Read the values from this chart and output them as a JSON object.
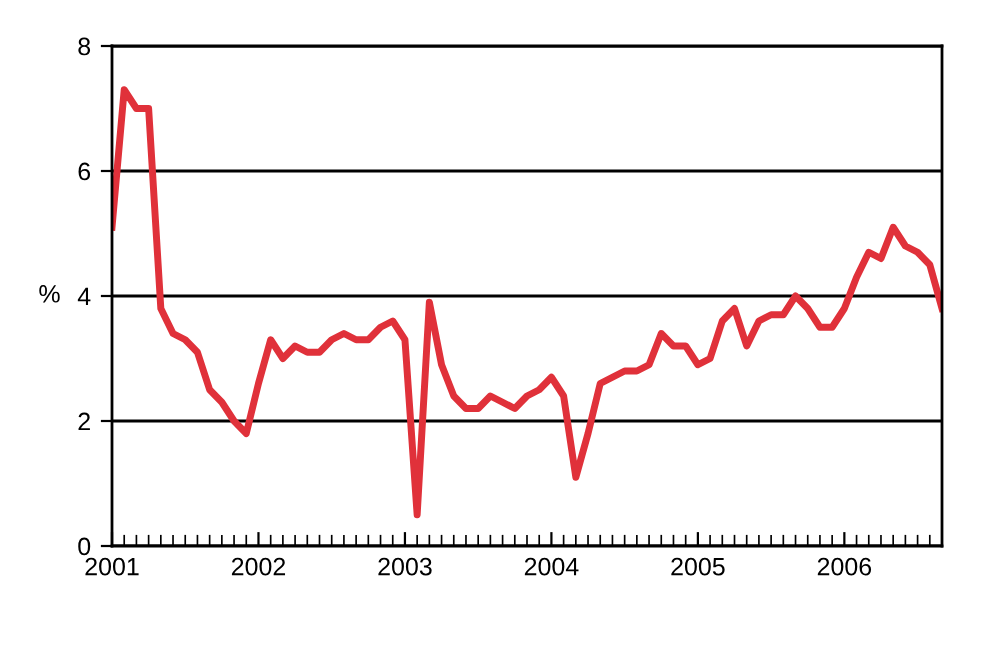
{
  "chart_data": {
    "type": "line",
    "ylabel": "%",
    "x": [
      "2001-01",
      "2001-02",
      "2001-03",
      "2001-04",
      "2001-05",
      "2001-06",
      "2001-07",
      "2001-08",
      "2001-09",
      "2001-10",
      "2001-11",
      "2001-12",
      "2002-01",
      "2002-02",
      "2002-03",
      "2002-04",
      "2002-05",
      "2002-06",
      "2002-07",
      "2002-08",
      "2002-09",
      "2002-10",
      "2002-11",
      "2002-12",
      "2003-01",
      "2003-02",
      "2003-03",
      "2003-04",
      "2003-05",
      "2003-06",
      "2003-07",
      "2003-08",
      "2003-09",
      "2003-10",
      "2003-11",
      "2003-12",
      "2004-01",
      "2004-02",
      "2004-03",
      "2004-04",
      "2004-05",
      "2004-06",
      "2004-07",
      "2004-08",
      "2004-09",
      "2004-10",
      "2004-11",
      "2004-12",
      "2005-01",
      "2005-02",
      "2005-03",
      "2005-04",
      "2005-05",
      "2005-06",
      "2005-07",
      "2005-08",
      "2005-09",
      "2005-10",
      "2005-11",
      "2005-12",
      "2006-01",
      "2006-02",
      "2006-03",
      "2006-04",
      "2006-05",
      "2006-06",
      "2006-07",
      "2006-08",
      "2006-09"
    ],
    "series": [
      {
        "color": "#e0313a",
        "values": [
          5.1,
          7.3,
          7.0,
          7.0,
          3.8,
          3.4,
          3.3,
          3.1,
          2.5,
          2.3,
          2.0,
          1.8,
          2.6,
          3.3,
          3.0,
          3.2,
          3.1,
          3.1,
          3.3,
          3.4,
          3.3,
          3.3,
          3.5,
          3.6,
          3.3,
          0.5,
          3.9,
          2.9,
          2.4,
          2.2,
          2.2,
          2.4,
          2.3,
          2.2,
          2.4,
          2.5,
          2.7,
          2.4,
          1.1,
          1.8,
          2.6,
          2.7,
          2.8,
          2.8,
          2.9,
          3.4,
          3.2,
          3.2,
          2.9,
          3.0,
          3.6,
          3.8,
          3.2,
          3.6,
          3.7,
          3.7,
          4.0,
          3.8,
          3.5,
          3.5,
          3.8,
          4.3,
          4.7,
          4.6,
          5.1,
          4.8,
          4.7,
          4.5,
          3.8
        ]
      }
    ],
    "xlim": [
      "2001-01",
      "2006-09"
    ],
    "xticks": [
      {
        "value": "2001-01",
        "label": "2001"
      },
      {
        "value": "2002-01",
        "label": "2002"
      },
      {
        "value": "2003-01",
        "label": "2003"
      },
      {
        "value": "2004-01",
        "label": "2004"
      },
      {
        "value": "2005-01",
        "label": "2005"
      },
      {
        "value": "2006-01",
        "label": "2006"
      }
    ],
    "ylim": [
      0,
      8
    ],
    "yticks": [
      0,
      2,
      4,
      6,
      8
    ],
    "grid": "y",
    "marker": "none",
    "line_style": "solid",
    "legend": false
  }
}
